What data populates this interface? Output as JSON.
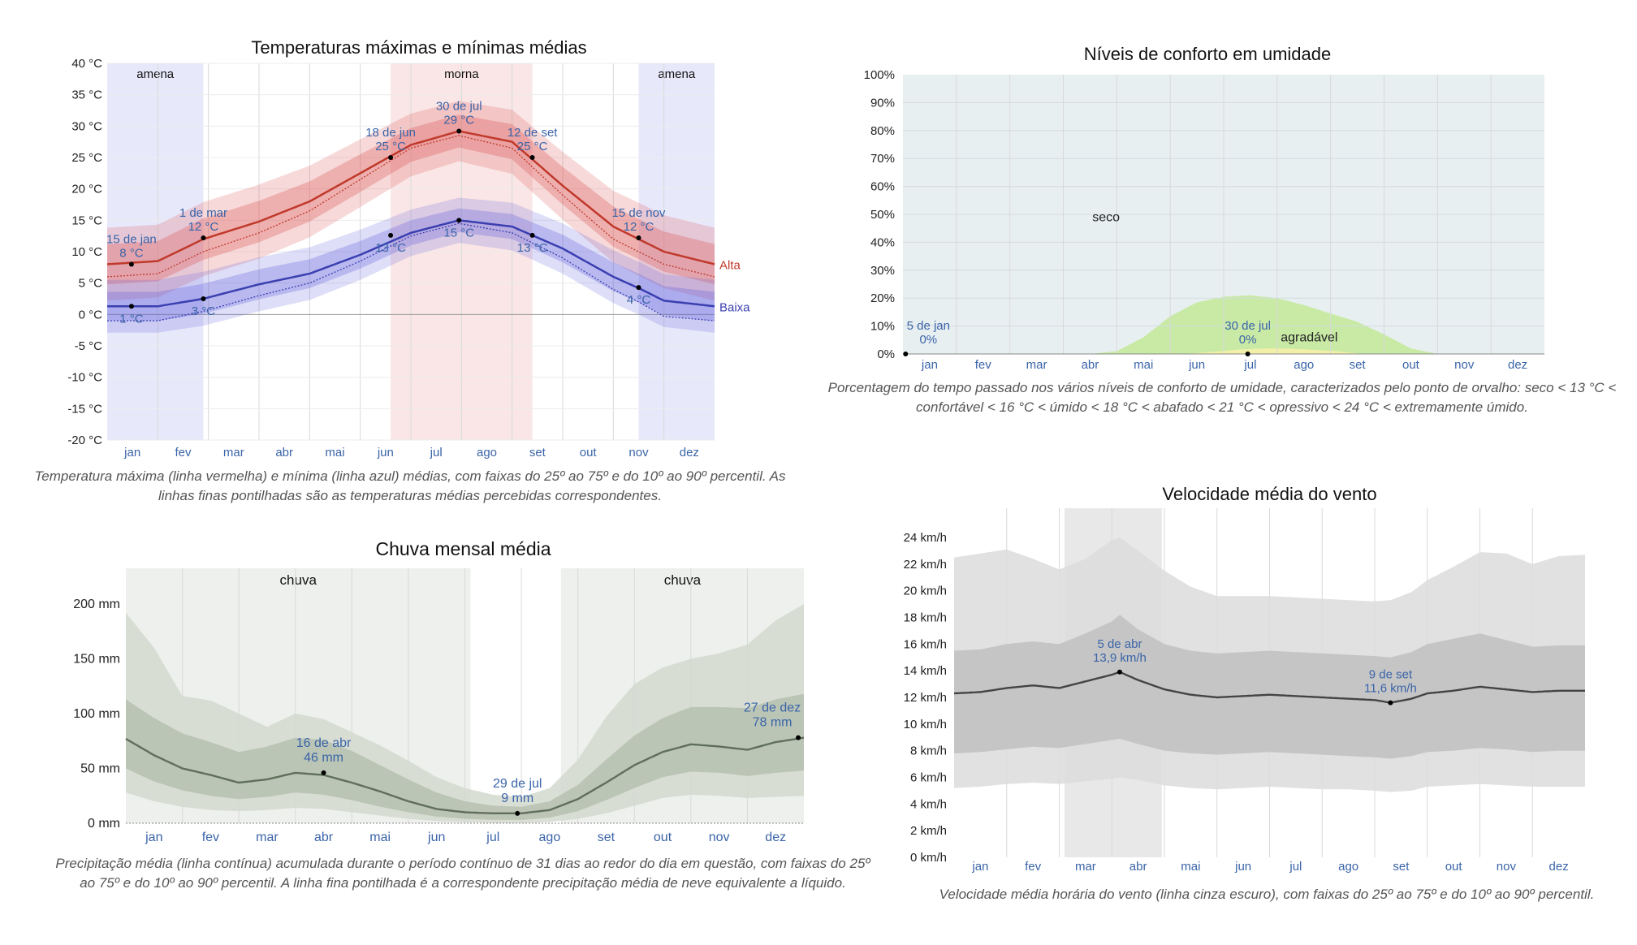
{
  "colors": {
    "plot_bg": "#ffffff",
    "grid": "#d9d9d9",
    "temp_high": "#c0392b",
    "temp_low": "#3b3fb0",
    "label_blue": "#3a64a8",
    "season_cool": "#e8e8fb",
    "season_warm": "#fae6e6",
    "humidity_dry": "#e8eff1",
    "humidity_comfortable": "#c8eaa5",
    "humidity_humid": "#f2f0a8",
    "rain_season": "#edf0ec",
    "rain_band_outer": "#d3d9cf",
    "rain_band_inner": "#b8c2b2",
    "rain_line": "#5f6f5a",
    "wind_band_outer": "#dcdcdc",
    "wind_band_inner": "#c2c2c2",
    "wind_line": "#444444",
    "wind_highlight": "#e8e8e8"
  },
  "chart_data": [
    {
      "type": "line",
      "title": "Temperaturas máximas e mínimas médias",
      "caption": "Temperatura máxima (linha vermelha) e mínima (linha azul) médias, com faixas do 25º ao 75º e do 10º ao 90º percentil. As linhas finas pontilhadas são as temperaturas médias percebidas correspondentes.",
      "months": [
        "jan",
        "fev",
        "mar",
        "abr",
        "mai",
        "jun",
        "jul",
        "ago",
        "set",
        "out",
        "nov",
        "dez"
      ],
      "y_ticks": [
        "40 °C",
        "35 °C",
        "30 °C",
        "25 °C",
        "20 °C",
        "15 °C",
        "10 °C",
        "5 °C",
        "0 °C",
        "-5 °C",
        "-10 °C",
        "-15 °C",
        "-20 °C"
      ],
      "ylim": [
        -20,
        40
      ],
      "seasons": [
        {
          "label": "amena",
          "start_month": 0,
          "end_month": 1.9
        },
        {
          "label": "morna",
          "start_month": 5.6,
          "end_month": 8.4
        },
        {
          "label": "amena",
          "start_month": 10.5,
          "end_month": 12
        }
      ],
      "series": [
        {
          "name": "Alta",
          "x": [
            0,
            1,
            1.9,
            3,
            4,
            5,
            6,
            6.95,
            8,
            9,
            10,
            10.5,
            11,
            12
          ],
          "values": [
            8,
            8.5,
            12,
            14.8,
            18,
            22.5,
            27,
            29.2,
            27.5,
            20.5,
            14,
            12,
            10,
            8
          ],
          "band_inner": [
            3.2,
            3.2,
            3.3,
            3.3,
            3.2,
            3.0,
            2.7,
            2.6,
            2.8,
            3.0,
            3.2,
            3.2,
            3.2,
            3.2
          ],
          "band_outer": [
            5.8,
            5.8,
            5.9,
            5.9,
            5.7,
            5.4,
            5.0,
            4.8,
            5.1,
            5.4,
            5.7,
            5.8,
            5.8,
            5.8
          ],
          "feels_like": [
            6,
            6.5,
            10,
            13,
            16.5,
            21.5,
            26.5,
            28.5,
            26.5,
            19,
            12,
            10,
            8,
            6
          ]
        },
        {
          "name": "Baixa",
          "x": [
            0,
            1,
            1.9,
            3,
            4,
            5,
            6,
            6.95,
            8,
            9,
            10,
            10.5,
            11,
            12
          ],
          "values": [
            1.3,
            1.3,
            2.5,
            4.8,
            6.5,
            9.5,
            13,
            15,
            14,
            10.5,
            6,
            4.2,
            2.2,
            1.3
          ],
          "band_inner": [
            2.3,
            2.3,
            2.4,
            2.4,
            2.3,
            2.2,
            2.0,
            1.9,
            2.0,
            2.2,
            2.3,
            2.3,
            2.3,
            2.3
          ],
          "band_outer": [
            4.2,
            4.2,
            4.3,
            4.3,
            4.2,
            4.0,
            3.7,
            3.6,
            3.8,
            4.0,
            4.2,
            4.2,
            4.2,
            4.2
          ],
          "feels_like": [
            -1,
            -1,
            0.5,
            3,
            5,
            8.5,
            12.5,
            14.5,
            13,
            9,
            4,
            2,
            -0.3,
            -1
          ]
        }
      ],
      "annotations": [
        {
          "date": "15 de jan",
          "value": "8 °C",
          "x": 0.48,
          "y": 8,
          "series": "Alta",
          "pos": "above"
        },
        {
          "date": "1 de mar",
          "value": "12 °C",
          "x": 1.9,
          "y": 12.2,
          "series": "Alta",
          "pos": "above"
        },
        {
          "date": "18 de jun",
          "value": "25 °C",
          "x": 5.6,
          "y": 25,
          "series": "Alta",
          "pos": "above"
        },
        {
          "date": "30 de jul",
          "value": "29 °C",
          "x": 6.95,
          "y": 29.2,
          "series": "Alta",
          "pos": "above"
        },
        {
          "date": "12 de set",
          "value": "25 °C",
          "x": 8.4,
          "y": 25,
          "series": "Alta",
          "pos": "above"
        },
        {
          "date": "15 de nov",
          "value": "12 °C",
          "x": 10.5,
          "y": 12.2,
          "series": "Alta",
          "pos": "above"
        },
        {
          "date": "",
          "value": "1 °C",
          "x": 0.48,
          "y": 1.3,
          "series": "Baixa",
          "pos": "below"
        },
        {
          "date": "",
          "value": "3 °C",
          "x": 1.9,
          "y": 2.5,
          "series": "Baixa",
          "pos": "below"
        },
        {
          "date": "",
          "value": "13 °C",
          "x": 5.6,
          "y": 12.6,
          "series": "Baixa",
          "pos": "below"
        },
        {
          "date": "",
          "value": "15 °C",
          "x": 6.95,
          "y": 15,
          "series": "Baixa",
          "pos": "below"
        },
        {
          "date": "",
          "value": "13 °C",
          "x": 8.4,
          "y": 12.6,
          "series": "Baixa",
          "pos": "below"
        },
        {
          "date": "",
          "value": "4 °C",
          "x": 10.5,
          "y": 4.3,
          "series": "Baixa",
          "pos": "below"
        }
      ]
    },
    {
      "type": "area",
      "title": "Níveis de conforto em umidade",
      "caption": "Porcentagem do tempo passado nos vários níveis de conforto de umidade, caracterizados pelo ponto de orvalho: seco < 13 °C < confortável < 16 °C < úmido < 18 °C < abafado < 21 °C < opressivo < 24 °C < extremamente úmido.",
      "months": [
        "jan",
        "fev",
        "mar",
        "abr",
        "mai",
        "jun",
        "jul",
        "ago",
        "set",
        "out",
        "nov",
        "dez"
      ],
      "y_ticks": [
        "100%",
        "90%",
        "80%",
        "70%",
        "60%",
        "50%",
        "40%",
        "30%",
        "20%",
        "10%",
        "0%"
      ],
      "ylim": [
        0,
        100
      ],
      "region_labels": [
        {
          "text": "seco",
          "x": 3.8,
          "y": 49
        },
        {
          "text": "agradável",
          "x": 7.6,
          "y": 6
        }
      ],
      "series": [
        {
          "name": "agradável",
          "x": [
            0,
            3.5,
            4,
            4.5,
            5,
            5.5,
            6,
            6.5,
            7,
            7.5,
            8,
            8.5,
            9,
            9.5,
            10,
            12
          ],
          "values": [
            0,
            0,
            1,
            6,
            13.5,
            18.5,
            20.5,
            21,
            20,
            17.5,
            14.5,
            11.5,
            7,
            2,
            0,
            0
          ]
        },
        {
          "name": "úmido",
          "x": [
            0,
            5.3,
            5.8,
            6.3,
            6.9,
            7.5,
            8.1,
            8.6,
            12
          ],
          "values": [
            0,
            0,
            0.8,
            1.6,
            2,
            1.7,
            1,
            0,
            0
          ]
        }
      ],
      "annotations": [
        {
          "date": "5 de jan",
          "value": "0%",
          "x": 0.05,
          "y": 0
        },
        {
          "date": "30 de jul",
          "value": "0%",
          "x": 6.45,
          "y": 0
        }
      ]
    },
    {
      "type": "area",
      "title": "Chuva mensal média",
      "caption": "Precipitação média (linha contínua) acumulada durante o período contínuo de 31 dias ao redor do dia em questão, com faixas do 25º ao 75º e do 10º ao 90º percentil. A linha fina pontilhada é a correspondente precipitação média de neve equivalente a líquido.",
      "months": [
        "jan",
        "fev",
        "mar",
        "abr",
        "mai",
        "jun",
        "jul",
        "ago",
        "set",
        "out",
        "nov",
        "dez"
      ],
      "y_ticks": [
        "200 mm",
        "150 mm",
        "100 mm",
        "50 mm",
        "0 mm"
      ],
      "ylim": [
        0,
        200
      ],
      "seasons": [
        {
          "label": "chuva",
          "start_month": 0,
          "end_month": 6.1
        },
        {
          "label": "chuva",
          "start_month": 7.7,
          "end_month": 12
        }
      ],
      "series": [
        {
          "name": "chuva",
          "x": [
            0,
            0.5,
            1,
            1.5,
            2,
            2.5,
            3,
            3.5,
            4,
            4.5,
            5,
            5.5,
            6,
            6.5,
            7,
            7.5,
            8,
            8.5,
            9,
            9.5,
            10,
            10.5,
            11,
            11.5,
            12
          ],
          "values": [
            77,
            62,
            50,
            44,
            37,
            40,
            46,
            44,
            37,
            29,
            20,
            13,
            10,
            9,
            9,
            12,
            22,
            37,
            53,
            65,
            72,
            70,
            67,
            74,
            78
          ],
          "p25": [
            50,
            38,
            30,
            25,
            22,
            24,
            28,
            26,
            21,
            15,
            10,
            6,
            4,
            3,
            3,
            5,
            11,
            21,
            32,
            42,
            47,
            46,
            43,
            46,
            48
          ],
          "p75": [
            113,
            96,
            82,
            74,
            65,
            70,
            78,
            76,
            66,
            53,
            40,
            28,
            20,
            16,
            15,
            20,
            35,
            58,
            80,
            96,
            106,
            106,
            105,
            113,
            118
          ],
          "p10": [
            28,
            20,
            15,
            12,
            11,
            12,
            14,
            13,
            10,
            7,
            4,
            2,
            1,
            0,
            0,
            1,
            4,
            9,
            16,
            23,
            26,
            25,
            23,
            24,
            25
          ],
          "p90": [
            192,
            160,
            116,
            112,
            100,
            88,
            100,
            95,
            83,
            71,
            57,
            42,
            32,
            26,
            24,
            32,
            58,
            97,
            127,
            142,
            150,
            155,
            163,
            185,
            200
          ]
        }
      ],
      "annotations": [
        {
          "date": "16 de abr",
          "value": "46 mm",
          "x": 3.5,
          "y": 46
        },
        {
          "date": "29 de jul",
          "value": "9 mm",
          "x": 6.93,
          "y": 9
        },
        {
          "date": "27 de dez",
          "value": "78 mm",
          "x": 11.9,
          "y": 78
        }
      ]
    },
    {
      "type": "line",
      "title": "Velocidade média do vento",
      "caption": "Velocidade média horária do vento (linha cinza escuro), com faixas do 25º ao 75º e do 10º ao 90º percentil.",
      "months": [
        "jan",
        "fev",
        "mar",
        "abr",
        "mai",
        "jun",
        "jul",
        "ago",
        "set",
        "out",
        "nov",
        "dez"
      ],
      "y_ticks": [
        "24 km/h",
        "22 km/h",
        "20 km/h",
        "18 km/h",
        "16 km/h",
        "14 km/h",
        "12 km/h",
        "10 km/h",
        "8 km/h",
        "6 km/h",
        "4 km/h",
        "2 km/h",
        "0 km/h"
      ],
      "ylim": [
        0,
        24
      ],
      "highlight": {
        "start_month": 2.1,
        "end_month": 3.95
      },
      "series": [
        {
          "name": "vento",
          "x": [
            0,
            0.5,
            1,
            1.5,
            2,
            2.5,
            3,
            3.15,
            3.5,
            4,
            4.5,
            5,
            5.5,
            6,
            6.5,
            7,
            7.5,
            8,
            8.3,
            8.7,
            9,
            9.5,
            10,
            10.5,
            11,
            11.5,
            12
          ],
          "values": [
            12.3,
            12.4,
            12.7,
            12.9,
            12.7,
            13.2,
            13.7,
            13.9,
            13.3,
            12.6,
            12.2,
            12.0,
            12.1,
            12.2,
            12.1,
            12.0,
            11.9,
            11.8,
            11.6,
            11.9,
            12.3,
            12.5,
            12.8,
            12.6,
            12.4,
            12.5,
            12.5
          ],
          "p25": [
            7.8,
            7.9,
            8.1,
            8.3,
            8.2,
            8.5,
            8.8,
            8.9,
            8.5,
            8.0,
            7.8,
            7.7,
            7.8,
            7.9,
            7.8,
            7.7,
            7.6,
            7.5,
            7.4,
            7.6,
            7.9,
            8.0,
            8.2,
            8.1,
            7.9,
            8.0,
            8.0
          ],
          "p75": [
            15.5,
            15.6,
            16.0,
            16.2,
            16.0,
            16.8,
            17.7,
            18.2,
            17.1,
            16.0,
            15.5,
            15.3,
            15.4,
            15.5,
            15.4,
            15.3,
            15.2,
            15.1,
            15.0,
            15.4,
            16.0,
            16.4,
            16.8,
            16.3,
            15.8,
            15.9,
            15.9
          ],
          "p10": [
            5.2,
            5.3,
            5.5,
            5.6,
            5.5,
            5.7,
            5.9,
            6.0,
            5.8,
            5.4,
            5.2,
            5.1,
            5.2,
            5.3,
            5.2,
            5.1,
            5.1,
            5.0,
            4.9,
            5.0,
            5.3,
            5.4,
            5.5,
            5.4,
            5.3,
            5.3,
            5.3
          ],
          "p90": [
            22.5,
            22.8,
            23.1,
            22.4,
            21.6,
            22.4,
            23.8,
            24.0,
            23.0,
            21.5,
            20.3,
            19.6,
            19.6,
            19.6,
            19.5,
            19.4,
            19.3,
            19.2,
            19.3,
            19.9,
            20.8,
            21.8,
            22.9,
            22.8,
            22.0,
            22.6,
            22.7
          ]
        }
      ],
      "annotations": [
        {
          "date": "5 de abr",
          "value": "13,9 km/h",
          "x": 3.15,
          "y": 13.9
        },
        {
          "date": "9 de set",
          "value": "11,6 km/h",
          "x": 8.3,
          "y": 11.6
        }
      ]
    }
  ]
}
